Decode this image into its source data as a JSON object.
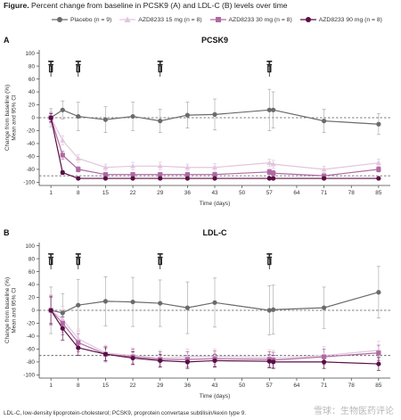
{
  "figure": {
    "title_bold": "Figure.",
    "title_rest": " Percent change from baseline in PCSK9 (A) and LDL-C (B) levels over time",
    "footnote": "LDL-C, low-density lipoprotein-cholesterol; PCSK9, proprotein convertase subtilisin/kexin type 9.",
    "watermark": "雪球：生物医药评论"
  },
  "colors": {
    "placebo": "#6b6b6b",
    "d15": "#e2c6dd",
    "d30": "#b06aa3",
    "d90": "#5a0f45",
    "errorbar": "#a8a8a8"
  },
  "chart_data": [
    {
      "type": "line",
      "panel_letter": "A",
      "title": "PCSK9",
      "xlabel": "Time (days)",
      "ylabel": [
        "Change from baseline (%)",
        "Mean and 95% CI"
      ],
      "x_ticks": [
        1,
        8,
        15,
        22,
        29,
        36,
        43,
        50,
        57,
        64,
        71,
        78,
        85
      ],
      "y_ticks": [
        100,
        80,
        60,
        40,
        20,
        0,
        -20,
        -40,
        -60,
        -80,
        -100
      ],
      "xlim": [
        -2,
        88
      ],
      "ylim": [
        -105,
        105
      ],
      "ref_lines": [
        0,
        -90
      ],
      "dose_days": [
        1,
        8,
        29,
        57
      ],
      "series": [
        {
          "name": "Placebo (n = 9)",
          "key": "placebo",
          "marker": "circle",
          "x": [
            1,
            4,
            8,
            15,
            22,
            29,
            36,
            43,
            57,
            58,
            71,
            85
          ],
          "y": [
            0,
            12,
            2,
            -3,
            2,
            -5,
            4,
            5,
            12,
            12,
            -5,
            -10
          ],
          "err": [
            14,
            14,
            22,
            20,
            22,
            18,
            20,
            24,
            32,
            28,
            18,
            16
          ]
        },
        {
          "name": "AZD8233 15 mg (n = 8)",
          "key": "d15",
          "marker": "triangle",
          "x": [
            1,
            4,
            8,
            15,
            22,
            29,
            36,
            43,
            57,
            58,
            71,
            85
          ],
          "y": [
            0,
            -35,
            -63,
            -77,
            -75,
            -75,
            -77,
            -77,
            -70,
            -72,
            -80,
            -70
          ],
          "err": [
            10,
            7,
            6,
            5,
            6,
            6,
            5,
            6,
            6,
            6,
            5,
            6
          ]
        },
        {
          "name": "AZD8233 30 mg (n = 8)",
          "key": "d30",
          "marker": "square",
          "x": [
            1,
            4,
            8,
            15,
            22,
            29,
            36,
            43,
            57,
            58,
            71,
            85
          ],
          "y": [
            0,
            -58,
            -80,
            -88,
            -88,
            -88,
            -88,
            -88,
            -84,
            -86,
            -90,
            -80
          ],
          "err": [
            8,
            6,
            4,
            3,
            3,
            3,
            3,
            3,
            4,
            4,
            3,
            4
          ]
        },
        {
          "name": "AZD8233 90 mg (n = 8)",
          "key": "d90",
          "marker": "circle",
          "x": [
            1,
            4,
            8,
            15,
            22,
            29,
            36,
            43,
            57,
            58,
            71,
            85
          ],
          "y": [
            0,
            -85,
            -94,
            -94,
            -94,
            -94,
            -94,
            -94,
            -94,
            -94,
            -94,
            -94
          ],
          "err": [
            6,
            3,
            2,
            2,
            2,
            2,
            2,
            2,
            2,
            2,
            2,
            2
          ]
        }
      ]
    },
    {
      "type": "line",
      "panel_letter": "B",
      "title": "LDL-C",
      "xlabel": "Time (days)",
      "ylabel": [
        "Change from baseline (%)",
        "Mean and 95% CI"
      ],
      "x_ticks": [
        1,
        8,
        15,
        22,
        29,
        36,
        43,
        50,
        57,
        64,
        71,
        78,
        85
      ],
      "y_ticks": [
        100,
        80,
        60,
        40,
        20,
        0,
        -20,
        -40,
        -60,
        -80,
        -100
      ],
      "xlim": [
        -2,
        88
      ],
      "ylim": [
        -105,
        105
      ],
      "ref_lines": [
        0,
        -70
      ],
      "dose_days": [
        1,
        8,
        29,
        57
      ],
      "series": [
        {
          "name": "Placebo (n = 9)",
          "key": "placebo",
          "marker": "circle",
          "x": [
            1,
            4,
            8,
            15,
            22,
            29,
            36,
            43,
            57,
            58,
            71,
            85
          ],
          "y": [
            0,
            -4,
            8,
            14,
            13,
            11,
            4,
            12,
            0,
            1,
            4,
            28
          ],
          "err": [
            36,
            30,
            40,
            38,
            38,
            36,
            40,
            38,
            38,
            38,
            32,
            40
          ]
        },
        {
          "name": "AZD8233 15 mg (n = 8)",
          "key": "d15",
          "marker": "triangle",
          "x": [
            1,
            4,
            8,
            15,
            22,
            29,
            36,
            43,
            57,
            58,
            71,
            85
          ],
          "y": [
            0,
            -14,
            -44,
            -66,
            -70,
            -74,
            -72,
            -72,
            -73,
            -74,
            -70,
            -62
          ],
          "err": [
            24,
            20,
            15,
            12,
            12,
            12,
            12,
            12,
            12,
            12,
            14,
            14
          ]
        },
        {
          "name": "AZD8233 30 mg (n = 8)",
          "key": "d30",
          "marker": "square",
          "x": [
            1,
            4,
            8,
            15,
            22,
            29,
            36,
            43,
            57,
            58,
            71,
            85
          ],
          "y": [
            0,
            -20,
            -50,
            -68,
            -72,
            -76,
            -76,
            -75,
            -76,
            -77,
            -72,
            -66
          ],
          "err": [
            20,
            18,
            14,
            12,
            12,
            12,
            12,
            12,
            12,
            12,
            12,
            12
          ]
        },
        {
          "name": "AZD8233 90 mg (n = 8)",
          "key": "d90",
          "marker": "circle",
          "x": [
            1,
            4,
            8,
            15,
            22,
            29,
            36,
            43,
            57,
            58,
            71,
            85
          ],
          "y": [
            0,
            -28,
            -58,
            -68,
            -74,
            -78,
            -80,
            -78,
            -79,
            -80,
            -80,
            -83
          ],
          "err": [
            22,
            18,
            12,
            10,
            10,
            10,
            10,
            10,
            10,
            10,
            10,
            10
          ]
        }
      ]
    }
  ]
}
